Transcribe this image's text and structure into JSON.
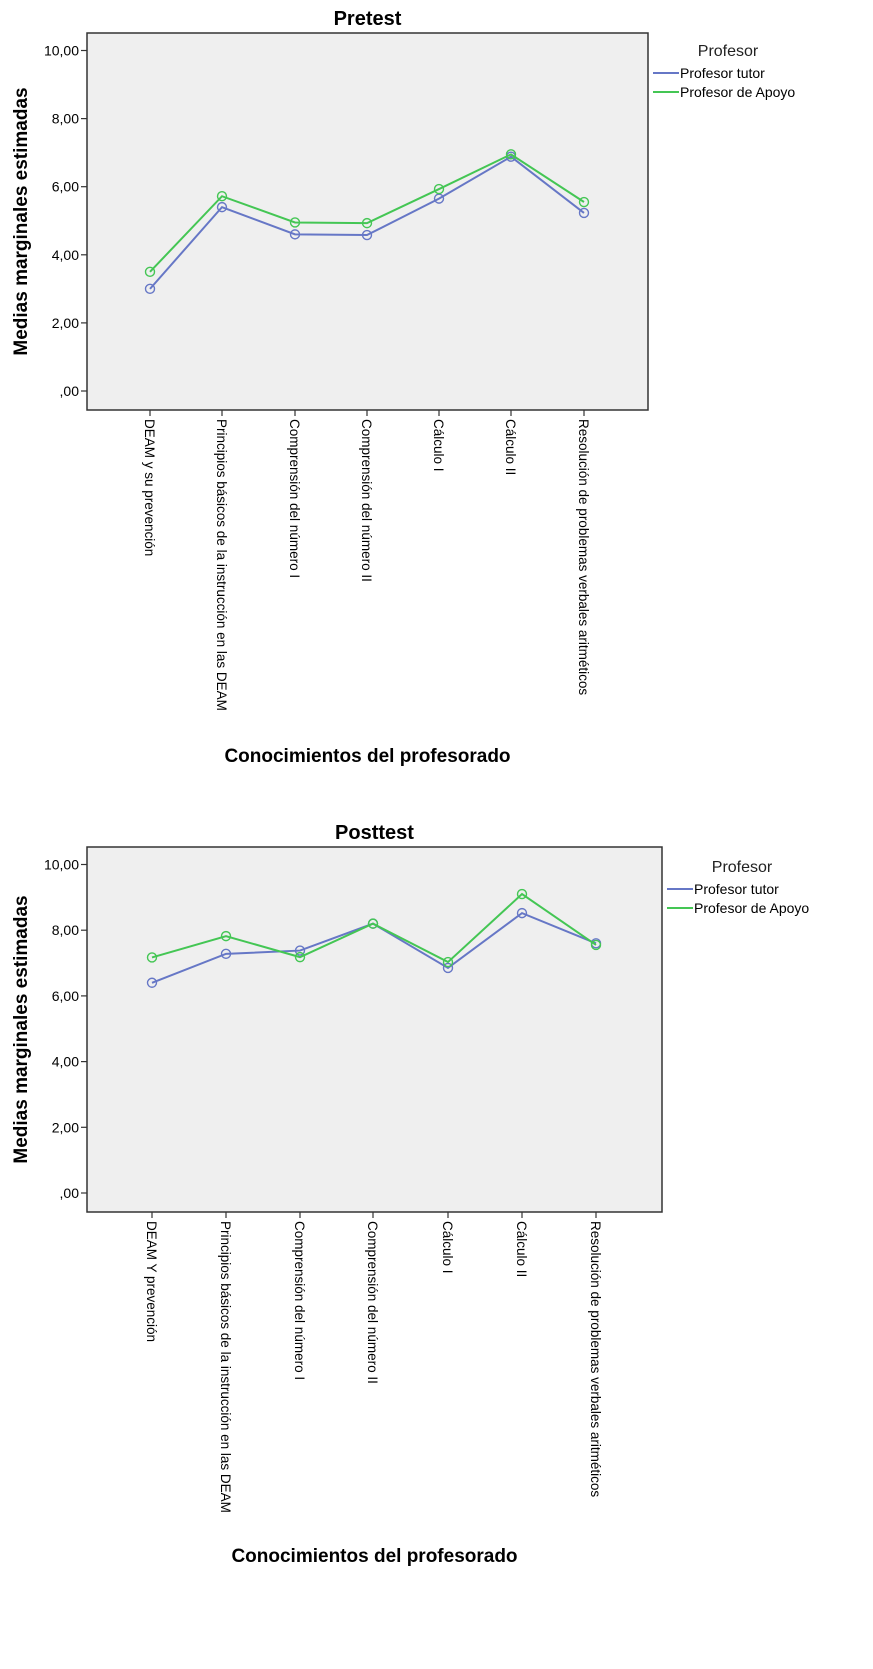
{
  "colors": {
    "tutor": "#6677c6",
    "apoyo": "#44c654",
    "plot_bg": "#efefef"
  },
  "chart_data": [
    {
      "type": "line",
      "title": "Pretest",
      "xlabel": "Conocimientos del profesorado",
      "ylabel": "Medias marginales estimadas",
      "ylim": [
        0,
        10
      ],
      "yticks": [
        "10,00",
        "8,00",
        "6,00",
        "4,00",
        "2,00",
        ",00"
      ],
      "ytick_values": [
        10,
        8,
        6,
        4,
        2,
        0
      ],
      "categories": [
        "DEAM y su prevención",
        "Principios básicos de la instrucción en las DEAM",
        "Comprensión del número I",
        "Comprensión del número II",
        "Cálculo I",
        "Cálculo II",
        "Resolución de problemas verbales aritméticos"
      ],
      "legend_title": "Profesor",
      "legend_position": "right",
      "series": [
        {
          "name": "Profesor tutor",
          "values": [
            3.0,
            5.4,
            4.6,
            4.58,
            5.65,
            6.88,
            5.23
          ]
        },
        {
          "name": "Profesor de Apoyo",
          "values": [
            3.5,
            5.72,
            4.95,
            4.93,
            5.93,
            6.95,
            5.55
          ]
        }
      ]
    },
    {
      "type": "line",
      "title": "Posttest",
      "xlabel": "Conocimientos del profesorado",
      "ylabel": "Medias marginales estimadas",
      "ylim": [
        0,
        10
      ],
      "yticks": [
        "10,00",
        "8,00",
        "6,00",
        "4,00",
        "2,00",
        ",00"
      ],
      "ytick_values": [
        10,
        8,
        6,
        4,
        2,
        0
      ],
      "categories": [
        "DEAM Y  prevención",
        "Principios básicos de la instrucción en las DEAM",
        "Comprensión del número I",
        "Comprensión del número II",
        "Cálculo I",
        "Cálculo II",
        "Resolución de problemas verbales aritméticos"
      ],
      "legend_title": "Profesor",
      "legend_position": "right",
      "series": [
        {
          "name": "Profesor tutor",
          "values": [
            6.4,
            7.28,
            7.38,
            8.2,
            6.85,
            8.52,
            7.6
          ]
        },
        {
          "name": "Profesor de Apoyo",
          "values": [
            7.17,
            7.82,
            7.18,
            8.2,
            7.03,
            9.1,
            7.55
          ]
        }
      ]
    }
  ]
}
